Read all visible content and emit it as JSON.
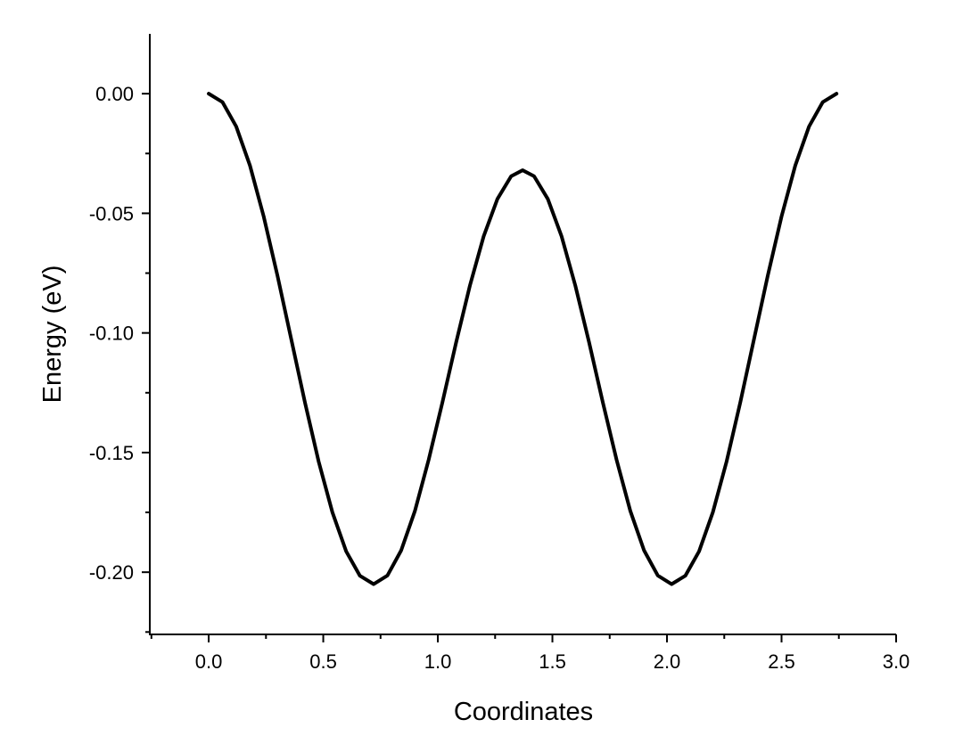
{
  "chart_data": {
    "type": "line",
    "xlabel": "Coordinates",
    "ylabel": "Energy (eV)",
    "series": [
      {
        "color": "#000000",
        "x": [
          0,
          0.06,
          0.12,
          0.18,
          0.24,
          0.3,
          0.36,
          0.42,
          0.48,
          0.54,
          0.6,
          0.66,
          0.72,
          0.78,
          0.84,
          0.9,
          0.96,
          1.02,
          1.08,
          1.14,
          1.2,
          1.26,
          1.32,
          1.37,
          1.42,
          1.48,
          1.54,
          1.6,
          1.66,
          1.72,
          1.78,
          1.84,
          1.9,
          1.96,
          2.02,
          2.08,
          2.14,
          2.2,
          2.26,
          2.32,
          2.38,
          2.44,
          2.5,
          2.56,
          2.62,
          2.68,
          2.74
        ],
        "values": [
          0,
          -0.0035,
          -0.0137,
          -0.03,
          -0.0513,
          -0.076,
          -0.1025,
          -0.129,
          -0.1538,
          -0.175,
          -0.1913,
          -0.2015,
          -0.205,
          -0.2014,
          -0.1909,
          -0.1744,
          -0.153,
          -0.129,
          -0.1039,
          -0.0802,
          -0.0596,
          -0.044,
          -0.0345,
          -0.032,
          -0.0345,
          -0.044,
          -0.0596,
          -0.0802,
          -0.1039,
          -0.129,
          -0.153,
          -0.1744,
          -0.1909,
          -0.2014,
          -0.205,
          -0.2015,
          -0.1913,
          -0.175,
          -0.1538,
          -0.129,
          -0.1025,
          -0.076,
          -0.0513,
          -0.03,
          -0.0137,
          -0.0035,
          0
        ]
      }
    ],
    "xlim": [
      -0.257,
      3.0
    ],
    "xticks": [
      {
        "value": 0,
        "label": "0.0"
      },
      {
        "value": 0.5,
        "label": "0.5"
      },
      {
        "value": 1,
        "label": "1.0"
      },
      {
        "value": 1.5,
        "label": "1.5"
      },
      {
        "value": 2,
        "label": "2.0"
      },
      {
        "value": 2.5,
        "label": "2.5"
      },
      {
        "value": 3,
        "label": "3.0"
      }
    ],
    "xminorticks": [
      -0.25,
      0.25,
      0.75,
      1.25,
      1.75,
      2.25,
      2.75
    ],
    "ylim": [
      -0.226,
      0.025
    ],
    "yticks": [
      {
        "value": 0,
        "label": "0.00"
      },
      {
        "value": -0.05,
        "label": "-0.05"
      },
      {
        "value": -0.1,
        "label": "-0.10"
      },
      {
        "value": -0.15,
        "label": "-0.15"
      },
      {
        "value": -0.2,
        "label": "-0.20"
      }
    ],
    "yminorticks": [
      -0.025,
      -0.075,
      -0.125,
      -0.175,
      -0.225
    ],
    "grid": false
  }
}
